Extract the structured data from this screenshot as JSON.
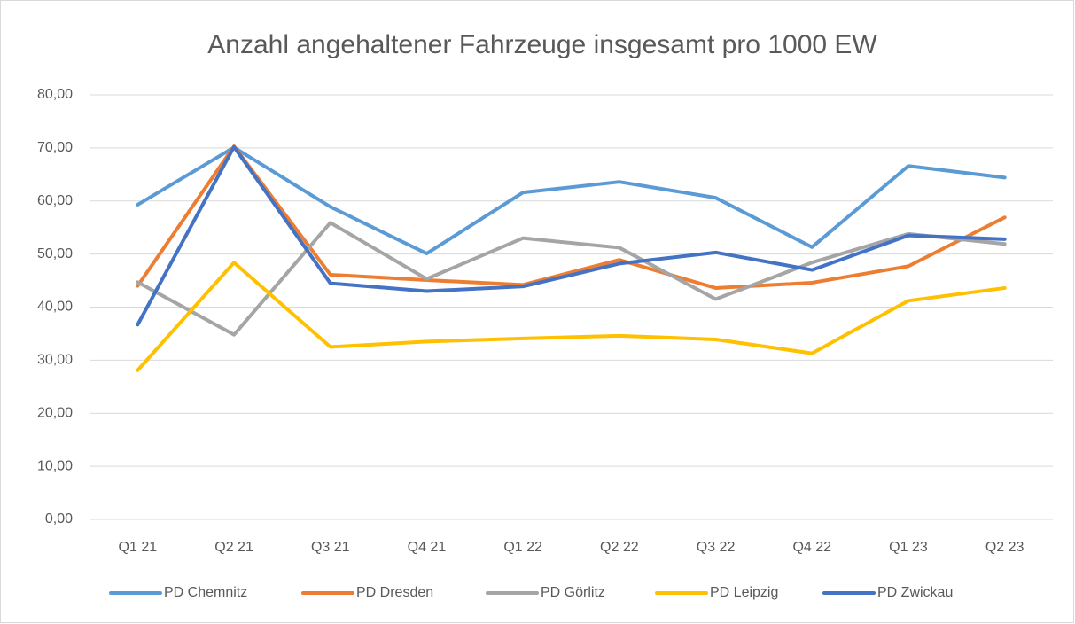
{
  "chart_data": {
    "type": "line",
    "title": "Anzahl angehaltener Fahrzeuge insgesamt pro 1000 EW",
    "categories": [
      "Q1 21",
      "Q2 21",
      "Q3 21",
      "Q4 21",
      "Q1 22",
      "Q2 22",
      "Q3 22",
      "Q4 22",
      "Q1 23",
      "Q2 23"
    ],
    "series": [
      {
        "name": "PD Chemnitz",
        "color": "#5b9bd5",
        "values": [
          59.3,
          70.1,
          58.9,
          50.1,
          61.6,
          63.6,
          60.6,
          51.3,
          66.6,
          64.4
        ]
      },
      {
        "name": "PD Dresden",
        "color": "#ed7d31",
        "values": [
          44.0,
          70.3,
          46.1,
          45.1,
          44.2,
          48.9,
          43.6,
          44.6,
          47.7,
          56.9
        ]
      },
      {
        "name": "PD Görlitz",
        "color": "#a5a5a5",
        "values": [
          44.7,
          34.8,
          55.9,
          45.3,
          53.0,
          51.2,
          41.5,
          48.4,
          53.8,
          51.9
        ]
      },
      {
        "name": "PD Leipzig",
        "color": "#ffc000",
        "values": [
          28.1,
          48.4,
          32.5,
          33.5,
          34.1,
          34.6,
          33.9,
          31.3,
          41.2,
          43.6
        ]
      },
      {
        "name": "PD Zwickau",
        "color": "#4472c4",
        "values": [
          36.7,
          70.2,
          44.5,
          43.0,
          43.9,
          48.2,
          50.3,
          47.0,
          53.5,
          52.8
        ]
      }
    ],
    "ylim": [
      0,
      80
    ],
    "yticks": [
      {
        "value": 0,
        "label": "0,00"
      },
      {
        "value": 10,
        "label": "10,00"
      },
      {
        "value": 20,
        "label": "20,00"
      },
      {
        "value": 30,
        "label": "30,00"
      },
      {
        "value": 40,
        "label": "40,00"
      },
      {
        "value": 50,
        "label": "50,00"
      },
      {
        "value": 60,
        "label": "60,00"
      },
      {
        "value": 70,
        "label": "70,00"
      },
      {
        "value": 80,
        "label": "80,00"
      }
    ],
    "grid": true
  }
}
